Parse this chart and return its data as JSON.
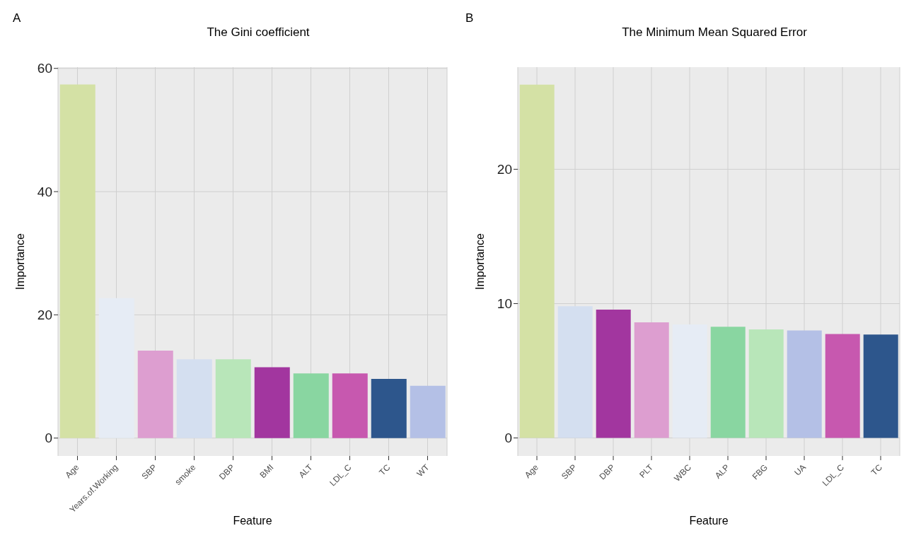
{
  "chart_data": [
    {
      "type": "bar",
      "title": "The Gini coefficient",
      "xlabel": "Feature",
      "ylabel": "Importance",
      "annotations": [
        "A"
      ],
      "categories": [
        "Age",
        "Years.of.Working",
        "SBP",
        "smoke",
        "DBP",
        "BMI",
        "ALT",
        "LDL_C",
        "TC",
        "WT"
      ],
      "values": [
        57.4,
        22.7,
        14.2,
        12.8,
        12.8,
        11.5,
        10.5,
        10.5,
        9.6,
        8.5
      ],
      "colors": [
        "#d4e1a5",
        "#e6ecf5",
        "#dd9ed0",
        "#d4dff0",
        "#b8e6b9",
        "#a2369f",
        "#89d6a1",
        "#c758af",
        "#2d568c",
        "#b4c0e6"
      ],
      "ylim": [
        -2.9,
        60.2
      ],
      "yticks": [
        0,
        20,
        40,
        60
      ],
      "grid": true
    },
    {
      "type": "bar",
      "title": "The Minimum Mean Squared Error",
      "xlabel": "Feature",
      "ylabel": "Importance",
      "annotations": [
        "B"
      ],
      "categories": [
        "Age",
        "SBP",
        "DBP",
        "PLT",
        "WBC",
        "ALP",
        "FBG",
        "UA",
        "LDL_C",
        "TC"
      ],
      "values": [
        26.3,
        9.8,
        9.55,
        8.6,
        8.45,
        8.27,
        8.08,
        8.0,
        7.74,
        7.7
      ],
      "colors": [
        "#d4e1a5",
        "#d4dff0",
        "#a2369f",
        "#dd9ed0",
        "#e6ecf5",
        "#89d6a1",
        "#b8e6b9",
        "#b4c0e6",
        "#c758af",
        "#2d568c"
      ],
      "ylim": [
        -1.34,
        27.6
      ],
      "yticks": [
        0,
        10,
        20
      ],
      "grid": true
    }
  ]
}
